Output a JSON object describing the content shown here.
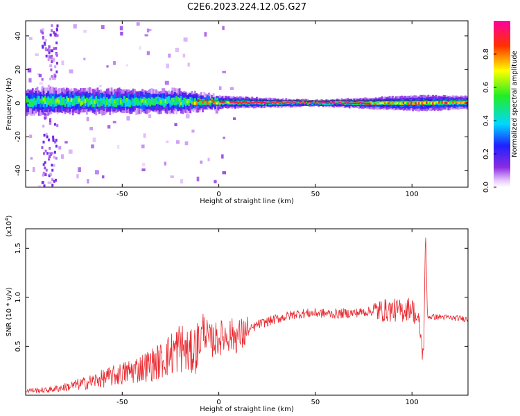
{
  "title": "C2E6.2023.224.12.05.G27",
  "chart_data": [
    {
      "type": "heatmap",
      "title": "C2E6.2023.224.12.05.G27",
      "xlabel": "Height of straight line (km)",
      "ylabel": "Frequency (Hz)",
      "xlim": [
        -100,
        129
      ],
      "ylim": [
        -50,
        49
      ],
      "xticks": [
        -50,
        0,
        50,
        100
      ],
      "yticks": [
        -40,
        -20,
        0,
        20,
        40
      ],
      "colorbar": {
        "label": "Normalized spectral amplitude",
        "range": [
          0,
          1
        ],
        "ticks": [
          "0.0",
          "0.2",
          "0.4",
          "0.6",
          "0.8"
        ],
        "colormap": "rainbow (violet→blue→cyan→green→yellow→red→magenta)"
      },
      "description_points": [
        {
          "x": -100,
          "freq_center": 1,
          "spread": 8
        },
        {
          "x": -20,
          "freq_center": 1,
          "spread": 7
        },
        {
          "x": 0,
          "freq_center": 0.5,
          "spread": 4
        },
        {
          "x": 50,
          "freq_center": 0,
          "spread": 2
        },
        {
          "x": 105,
          "freq_center": 0,
          "spread": 5
        },
        {
          "x": 129,
          "freq_center": 0.5,
          "spread": 4
        }
      ]
    },
    {
      "type": "line",
      "xlabel": "Height of straight line (km)",
      "ylabel": "SNR (10 * v/v)",
      "multiplier": "(x10^4)",
      "xlim": [
        -100,
        129
      ],
      "ylim": [
        0,
        1.7
      ],
      "xticks": [
        -50,
        0,
        50,
        100
      ],
      "yticks": [
        "0.5",
        "1.0",
        "1.5"
      ],
      "color": "#e8282e",
      "series": [
        {
          "x": [
            -100,
            -90,
            -80,
            -70,
            -60,
            -50,
            -40,
            -30,
            -25,
            -20,
            -15,
            -10,
            -8,
            -5,
            0,
            5,
            10,
            15,
            20,
            25,
            30,
            40,
            50,
            60,
            70,
            80,
            90,
            95,
            100,
            104,
            106,
            107,
            108,
            110,
            115,
            120,
            129
          ],
          "y": [
            0.05,
            0.05,
            0.08,
            0.12,
            0.17,
            0.22,
            0.28,
            0.35,
            0.42,
            0.5,
            0.42,
            0.52,
            0.7,
            0.55,
            0.58,
            0.62,
            0.6,
            0.65,
            0.72,
            0.75,
            0.78,
            0.83,
            0.84,
            0.83,
            0.84,
            0.86,
            0.87,
            0.86,
            0.9,
            0.7,
            0.35,
            1.7,
            0.8,
            0.8,
            0.8,
            0.79,
            0.78
          ]
        }
      ]
    }
  ]
}
